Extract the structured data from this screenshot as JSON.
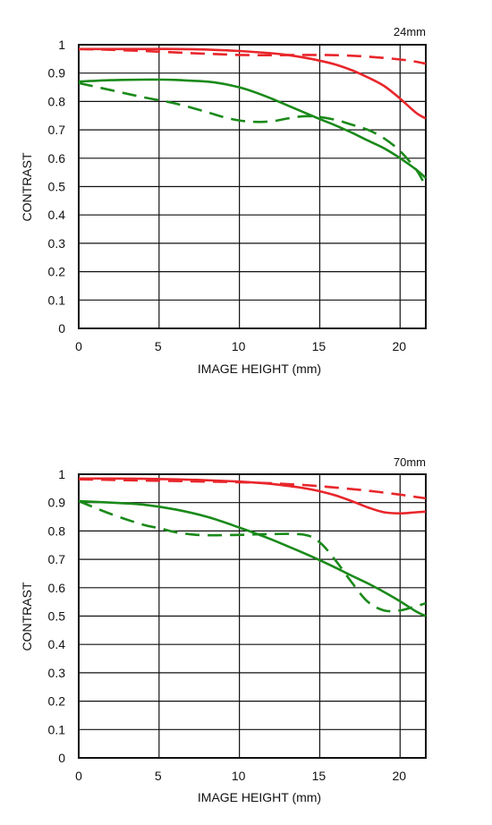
{
  "chart_data": [
    {
      "type": "line",
      "title": "24mm",
      "xlabel": "IMAGE HEIGHT (mm)",
      "ylabel": "CONTRAST",
      "xlim": [
        0,
        21.6
      ],
      "ylim": [
        0,
        1
      ],
      "xticks": [
        0,
        5,
        10,
        15,
        20
      ],
      "yticks": [
        0,
        0.1,
        0.2,
        0.3,
        0.4,
        0.5,
        0.6,
        0.7,
        0.8,
        0.9,
        1
      ],
      "xtick_labels": [
        "0",
        "5",
        "10",
        "15",
        "20"
      ],
      "ytick_labels": [
        "0",
        "0.1",
        "0.2",
        "0.3",
        "0.4",
        "0.5",
        "0.6",
        "0.7",
        "0.8",
        "0.9",
        "1"
      ],
      "grid": true,
      "series": [
        {
          "color": "#e8262b",
          "style": "solid",
          "x": [
            0,
            2,
            4,
            6,
            8,
            10,
            12,
            13,
            14,
            15,
            16,
            17,
            18,
            19,
            20,
            21,
            21.6
          ],
          "y": [
            0.985,
            0.985,
            0.985,
            0.985,
            0.983,
            0.978,
            0.97,
            0.964,
            0.955,
            0.944,
            0.93,
            0.91,
            0.885,
            0.855,
            0.81,
            0.76,
            0.74
          ]
        },
        {
          "color": "#e8262b",
          "style": "dashed",
          "x": [
            0,
            2,
            4,
            6,
            8,
            10,
            12,
            14,
            16,
            18,
            20,
            21,
            21.6
          ],
          "y": [
            0.985,
            0.982,
            0.978,
            0.973,
            0.968,
            0.964,
            0.963,
            0.964,
            0.963,
            0.958,
            0.948,
            0.94,
            0.933
          ]
        },
        {
          "color": "#1a8a1a",
          "style": "solid",
          "x": [
            0,
            2,
            4,
            5,
            6,
            8,
            9,
            10,
            11,
            12,
            13,
            14,
            15,
            16,
            17,
            18,
            19,
            20,
            21,
            21.6
          ],
          "y": [
            0.87,
            0.875,
            0.877,
            0.877,
            0.876,
            0.87,
            0.862,
            0.85,
            0.832,
            0.81,
            0.786,
            0.762,
            0.738,
            0.715,
            0.69,
            0.662,
            0.635,
            0.6,
            0.56,
            0.53
          ]
        },
        {
          "color": "#1a8a1a",
          "style": "dashed",
          "x": [
            0,
            2,
            4,
            6,
            8,
            9,
            10,
            11,
            12,
            13,
            14,
            15,
            16,
            17,
            18,
            19,
            20,
            21,
            21.6
          ],
          "y": [
            0.865,
            0.84,
            0.815,
            0.793,
            0.762,
            0.745,
            0.733,
            0.728,
            0.73,
            0.74,
            0.748,
            0.745,
            0.735,
            0.718,
            0.7,
            0.67,
            0.625,
            0.56,
            0.5
          ]
        }
      ]
    },
    {
      "type": "line",
      "title": "70mm",
      "xlabel": "IMAGE HEIGHT (mm)",
      "ylabel": "CONTRAST",
      "xlim": [
        0,
        21.6
      ],
      "ylim": [
        0,
        1
      ],
      "xticks": [
        0,
        5,
        10,
        15,
        20
      ],
      "yticks": [
        0,
        0.1,
        0.2,
        0.3,
        0.4,
        0.5,
        0.6,
        0.7,
        0.8,
        0.9,
        1
      ],
      "xtick_labels": [
        "0",
        "5",
        "10",
        "15",
        "20"
      ],
      "ytick_labels": [
        "0",
        "0.1",
        "0.2",
        "0.3",
        "0.4",
        "0.5",
        "0.6",
        "0.7",
        "0.8",
        "0.9",
        "1"
      ],
      "grid": true,
      "series": [
        {
          "color": "#e8262b",
          "style": "solid",
          "x": [
            0,
            2,
            4,
            6,
            8,
            10,
            12,
            13,
            14,
            15,
            16,
            17,
            18,
            19,
            20,
            21,
            21.6
          ],
          "y": [
            0.985,
            0.985,
            0.984,
            0.982,
            0.979,
            0.974,
            0.966,
            0.959,
            0.951,
            0.94,
            0.925,
            0.905,
            0.883,
            0.866,
            0.862,
            0.866,
            0.868
          ]
        },
        {
          "color": "#e8262b",
          "style": "dashed",
          "x": [
            0,
            2,
            4,
            6,
            8,
            10,
            12,
            14,
            16,
            18,
            20,
            21,
            21.6
          ],
          "y": [
            0.982,
            0.98,
            0.978,
            0.976,
            0.974,
            0.972,
            0.968,
            0.962,
            0.953,
            0.942,
            0.928,
            0.92,
            0.915
          ]
        },
        {
          "color": "#1a8a1a",
          "style": "solid",
          "x": [
            0,
            2,
            4,
            6,
            8,
            10,
            12,
            14,
            15,
            16,
            17,
            18,
            19,
            20,
            21,
            21.6
          ],
          "y": [
            0.905,
            0.9,
            0.893,
            0.876,
            0.85,
            0.812,
            0.77,
            0.722,
            0.697,
            0.67,
            0.642,
            0.615,
            0.585,
            0.552,
            0.516,
            0.5
          ]
        },
        {
          "color": "#1a8a1a",
          "style": "dashed",
          "x": [
            0,
            2,
            4,
            5,
            6,
            7,
            8,
            10,
            12,
            14,
            15,
            16,
            17,
            18,
            19,
            20,
            21,
            21.6
          ],
          "y": [
            0.905,
            0.86,
            0.822,
            0.81,
            0.796,
            0.788,
            0.785,
            0.786,
            0.789,
            0.787,
            0.76,
            0.695,
            0.618,
            0.55,
            0.52,
            0.52,
            0.535,
            0.545
          ]
        }
      ]
    }
  ]
}
